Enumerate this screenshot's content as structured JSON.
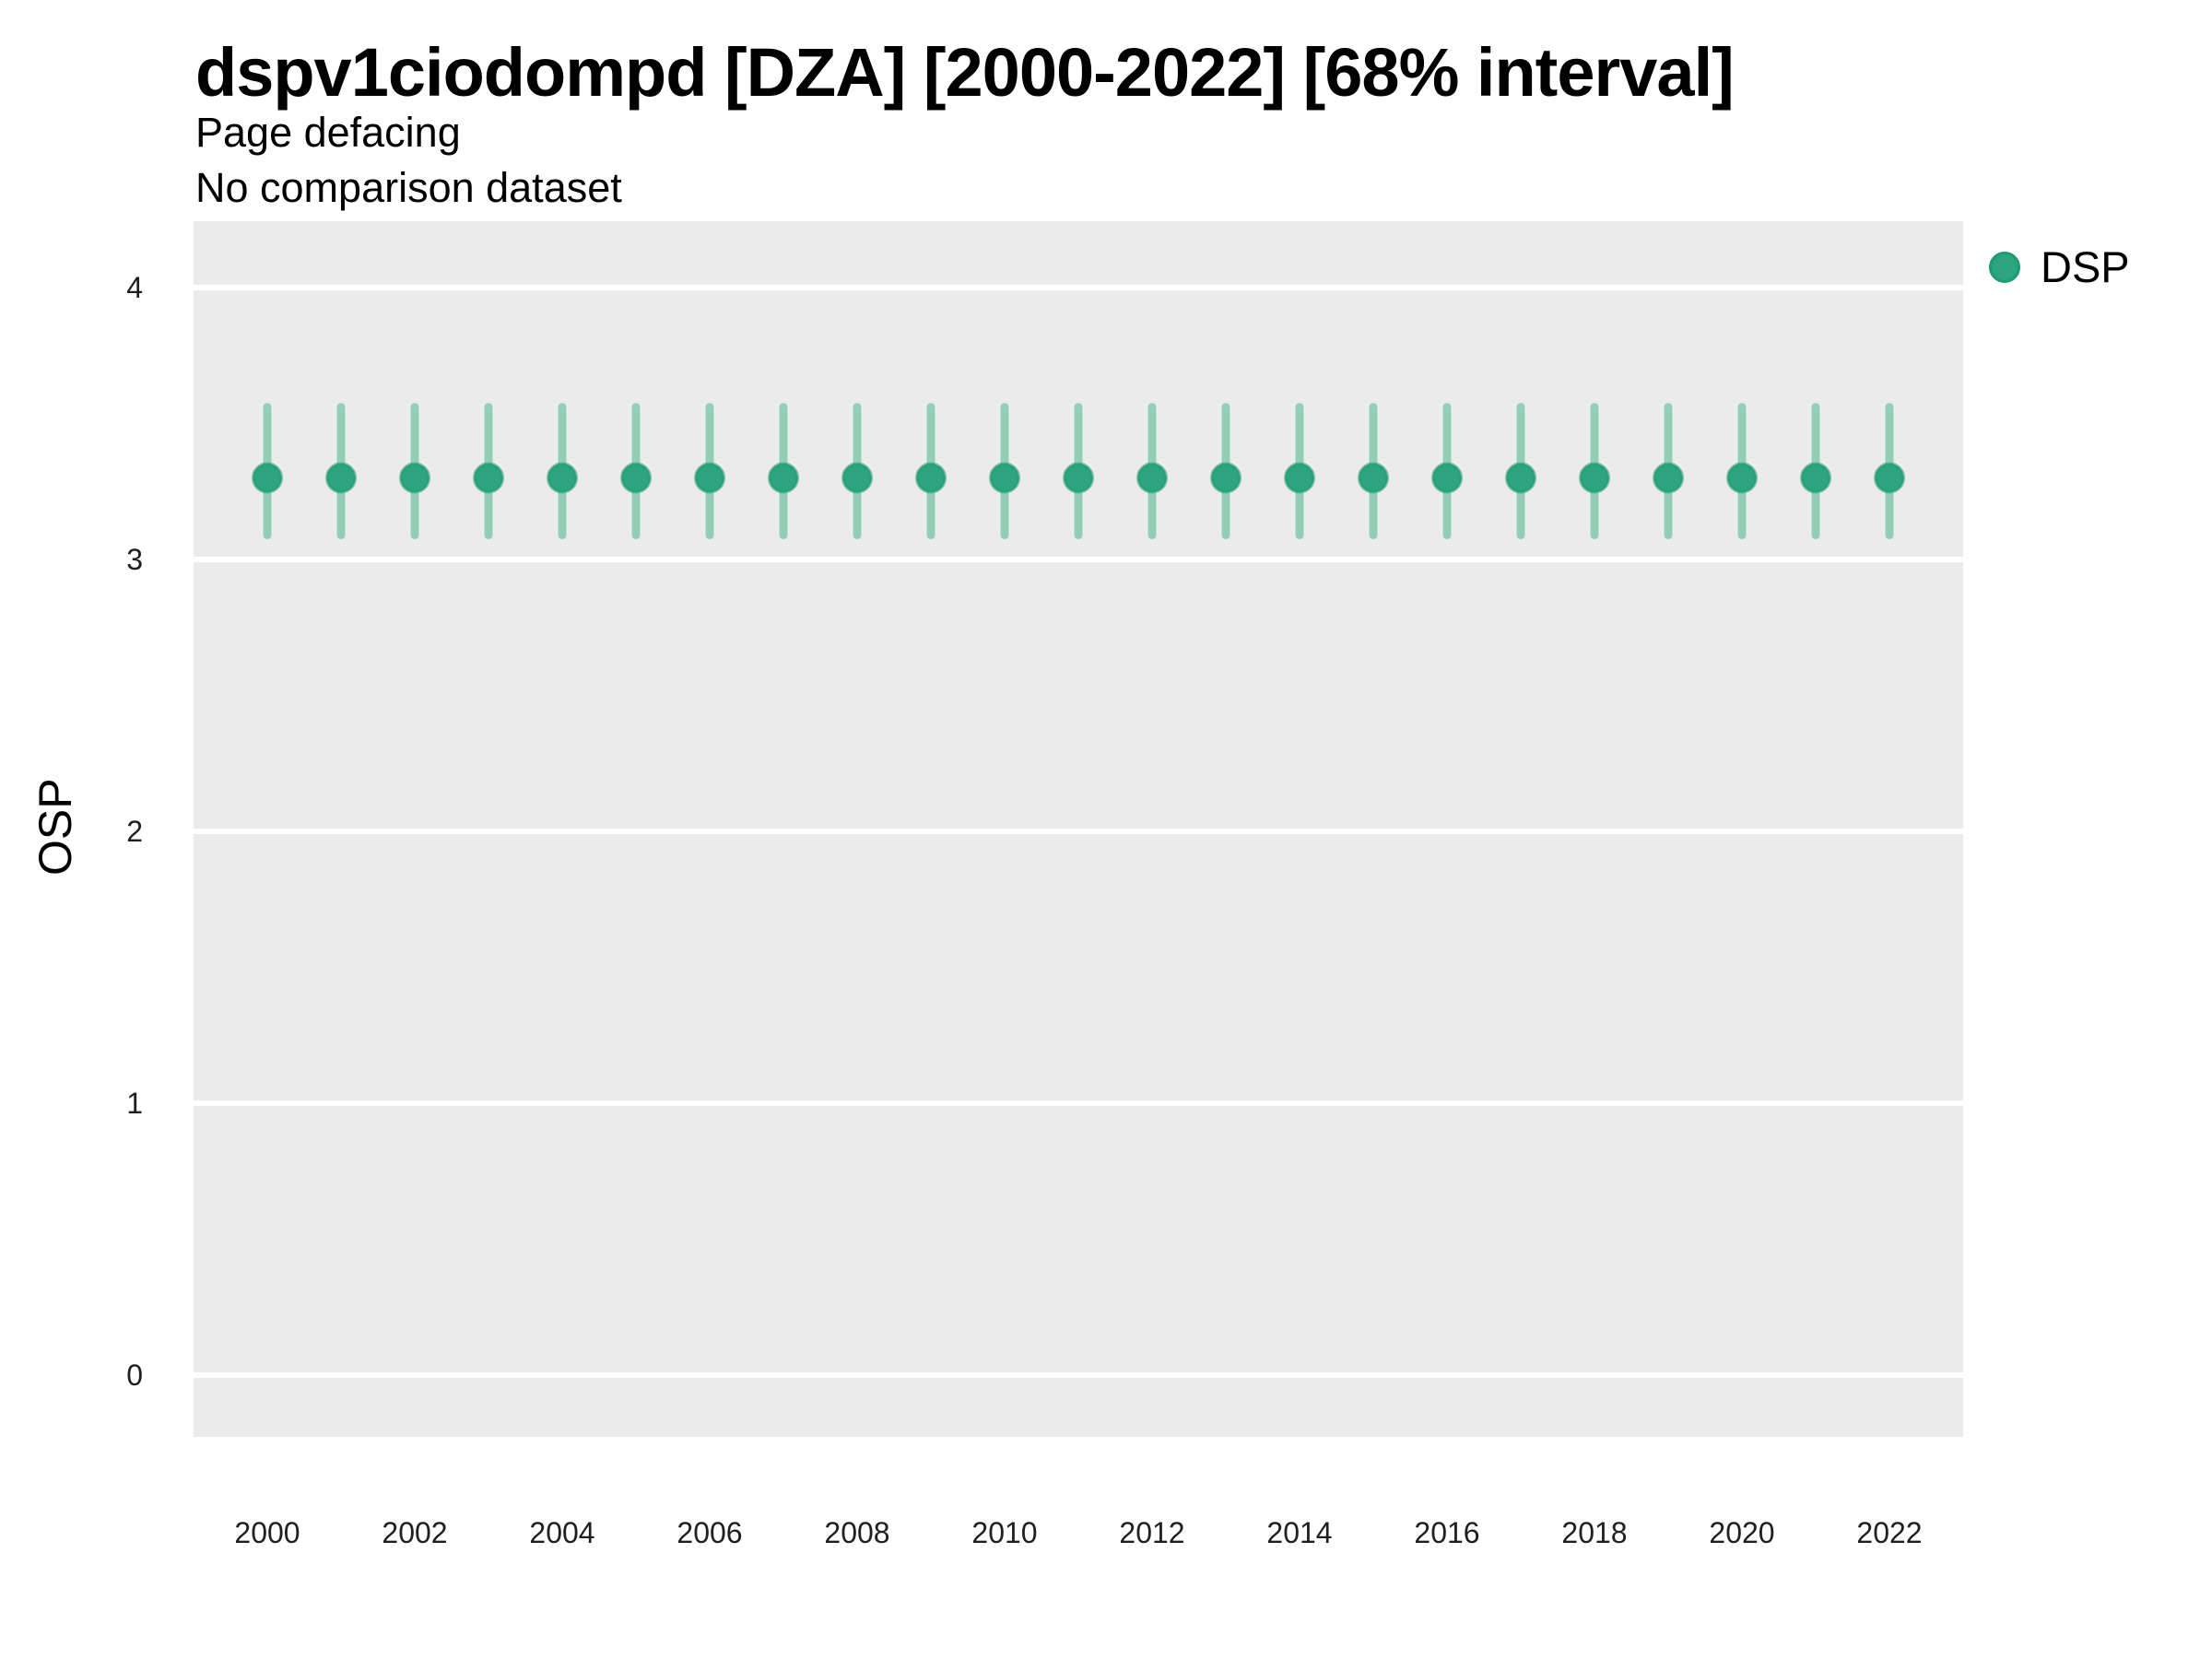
{
  "header": {
    "title": "dspv1ciodompd [DZA] [2000-2022] [68% interval]",
    "subtitle": "Page defacing",
    "note": "No comparison dataset"
  },
  "colors": {
    "point": "#2CA47E",
    "point_rim": "#1E9B73",
    "interval_bar": "#93CFB6",
    "panel_bg": "#EBEBEB",
    "gridline": "#FFFFFF",
    "text": "#000000"
  },
  "legend": {
    "items": [
      {
        "label": "DSP",
        "color": "#2CA47E"
      }
    ],
    "position": "right"
  },
  "y_axis": {
    "label": "OSP",
    "ticks": [
      "0",
      "1",
      "2",
      "3",
      "4"
    ]
  },
  "x_axis": {
    "ticks": [
      "2000",
      "2002",
      "2004",
      "2006",
      "2008",
      "2010",
      "2012",
      "2014",
      "2016",
      "2018",
      "2020",
      "2022"
    ]
  },
  "chart_data": {
    "type": "scatter",
    "title": "dspv1ciodompd [DZA] [2000-2022] [68% interval]",
    "subtitle": "Page defacing",
    "note": "No comparison dataset",
    "xlabel": "",
    "ylabel": "OSP",
    "interval_label": "68% interval",
    "x": [
      2000,
      2001,
      2002,
      2003,
      2004,
      2005,
      2006,
      2007,
      2008,
      2009,
      2010,
      2011,
      2012,
      2013,
      2014,
      2015,
      2016,
      2017,
      2018,
      2019,
      2020,
      2021,
      2022
    ],
    "series": [
      {
        "name": "DSP",
        "color": "#2CA47E",
        "values": [
          3.3,
          3.3,
          3.3,
          3.3,
          3.3,
          3.3,
          3.3,
          3.3,
          3.3,
          3.3,
          3.3,
          3.3,
          3.3,
          3.3,
          3.3,
          3.3,
          3.3,
          3.3,
          3.3,
          3.3,
          3.3,
          3.3,
          3.3
        ],
        "interval_low": [
          3.09,
          3.09,
          3.09,
          3.09,
          3.09,
          3.09,
          3.09,
          3.09,
          3.09,
          3.09,
          3.09,
          3.09,
          3.09,
          3.09,
          3.09,
          3.09,
          3.09,
          3.09,
          3.09,
          3.09,
          3.09,
          3.09,
          3.09
        ],
        "interval_high": [
          3.56,
          3.56,
          3.56,
          3.56,
          3.56,
          3.56,
          3.56,
          3.56,
          3.56,
          3.56,
          3.56,
          3.56,
          3.56,
          3.56,
          3.56,
          3.56,
          3.56,
          3.56,
          3.56,
          3.56,
          3.56,
          3.56,
          3.56
        ]
      }
    ],
    "xlim": [
      1999,
      2023
    ],
    "ylim": [
      -0.227,
      4.244
    ],
    "yticks": [
      0,
      1,
      2,
      3,
      4
    ],
    "xticks": [
      2000,
      2002,
      2004,
      2006,
      2008,
      2010,
      2012,
      2014,
      2016,
      2018,
      2020,
      2022
    ],
    "grid": "horizontal-major-only",
    "legend_position": "right"
  }
}
